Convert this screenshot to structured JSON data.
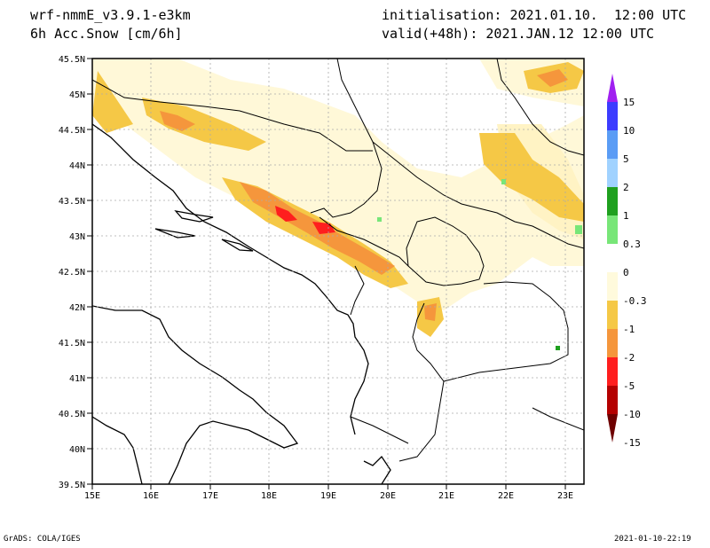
{
  "header": {
    "model": "wrf-nmmE_v3.9.1-e3km",
    "variable": "6h Acc.Snow [cm/6h]",
    "init": "initialisation: 2021.01.10.  12:00 UTC",
    "valid": "valid(+48h): 2021.JAN.12 12:00 UTC"
  },
  "footer": {
    "left": "GrADS: COLA/IGES",
    "right": "2021-01-10-22:19"
  },
  "axes": {
    "lat_labels": [
      "45.5N",
      "45N",
      "44.5N",
      "44N",
      "43.5N",
      "43N",
      "42.5N",
      "42N",
      "41.5N",
      "41N",
      "40.5N",
      "40N",
      "39.5N"
    ],
    "lon_labels": [
      "15E",
      "16E",
      "17E",
      "18E",
      "19E",
      "20E",
      "21E",
      "22E",
      "23E"
    ]
  },
  "colorbar": {
    "labels": [
      "15",
      "10",
      "5",
      "2",
      "1",
      "0.3",
      "0",
      "-0.3",
      "-1",
      "-2",
      "-5",
      "-10",
      "-15"
    ],
    "colors": [
      "#a020f0",
      "#3c3cff",
      "#5a9cf5",
      "#a0d2ff",
      "#1fa01f",
      "#78e678",
      "#ffffff",
      "#fffadc",
      "#f5c846",
      "#f5963c",
      "#ff1e1e",
      "#b40000",
      "#6e0000"
    ]
  },
  "colors": {
    "snow_light": "#fff5c8",
    "snow_mid": "#f5c846",
    "snow_orange": "#f5963c",
    "snow_red": "#ff1e1e",
    "gain_green": "#78e678"
  }
}
